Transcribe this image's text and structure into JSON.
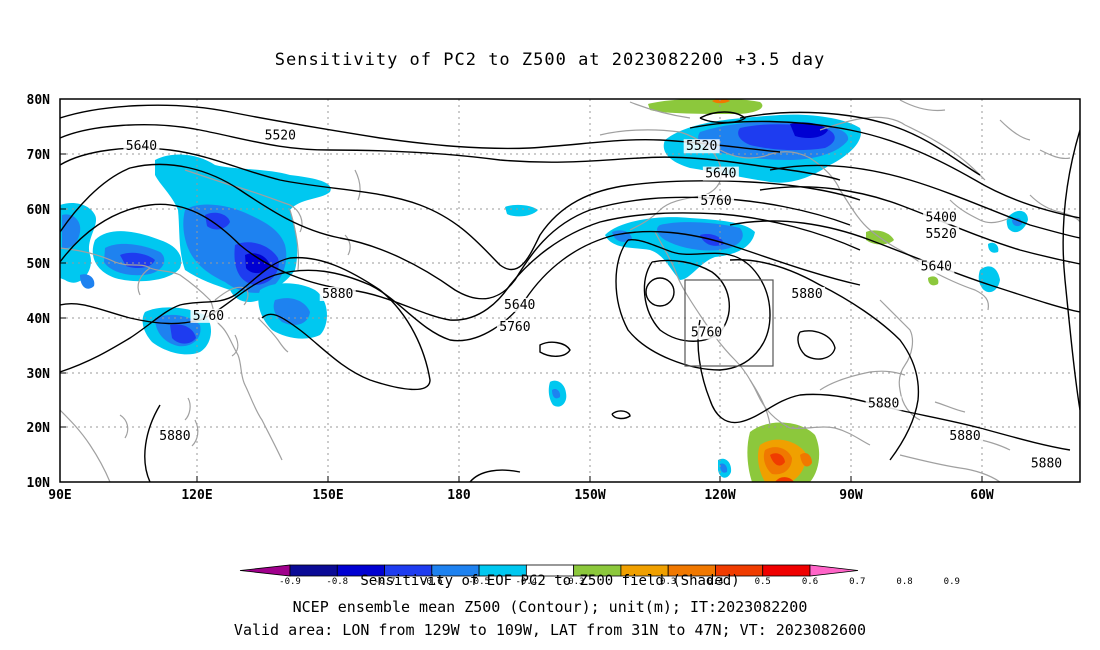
{
  "title": "Sensitivity of PC2 to Z500 at 2023082200 +3.5 day",
  "map": {
    "lat_labels": [
      "80N",
      "70N",
      "60N",
      "50N",
      "40N",
      "30N",
      "20N",
      "10N"
    ],
    "lon_labels": [
      "90E",
      "120E",
      "150E",
      "180",
      "150W",
      "120W",
      "90W",
      "60W"
    ],
    "contour_labels": [
      {
        "text": "5520",
        "lon": 136,
        "lat": 73
      },
      {
        "text": "5640",
        "lon": 107,
        "lat": 71
      },
      {
        "text": "5520",
        "lon": 224,
        "lat": 71
      },
      {
        "text": "5640",
        "lon": 228,
        "lat": 66
      },
      {
        "text": "5760",
        "lon": 227,
        "lat": 61
      },
      {
        "text": "5400",
        "lon": 274,
        "lat": 58
      },
      {
        "text": "5520",
        "lon": 274,
        "lat": 55
      },
      {
        "text": "5640",
        "lon": 273,
        "lat": 49
      },
      {
        "text": "5880",
        "lon": 246,
        "lat": 44
      },
      {
        "text": "5880",
        "lon": 148,
        "lat": 44
      },
      {
        "text": "5760",
        "lon": 121,
        "lat": 40
      },
      {
        "text": "5640",
        "lon": 186,
        "lat": 42
      },
      {
        "text": "5760",
        "lon": 185,
        "lat": 38
      },
      {
        "text": "5760",
        "lon": 225,
        "lat": 37
      },
      {
        "text": "5880",
        "lon": 262,
        "lat": 24
      },
      {
        "text": "5880",
        "lon": 279,
        "lat": 18
      },
      {
        "text": "5880",
        "lon": 296,
        "lat": 13
      },
      {
        "text": "5880",
        "lon": 114,
        "lat": 18
      }
    ],
    "valid_area_box": {
      "lon_min": 231,
      "lon_max": 251,
      "lat_min": 31,
      "lat_max": 47
    }
  },
  "colorbar": {
    "ticks": [
      "-0.9",
      "-0.8",
      "-0.7",
      "-0.6",
      "-0.5",
      "-0.4",
      "-0.3",
      "0.3",
      "0.4",
      "0.5",
      "0.6",
      "0.7",
      "0.8",
      "0.9"
    ],
    "colors": [
      "#a0008c",
      "#0a0a96",
      "#0000d2",
      "#1e3cf0",
      "#1e82f0",
      "#00c8f0",
      "#ffffff",
      "#8cc83c",
      "#f0a000",
      "#f07800",
      "#f03c00",
      "#f00000",
      "#ff64c8"
    ]
  },
  "captions": {
    "line1": "Sensitivity of EOF PC2 to Z500 field (Shaded)",
    "line2": "NCEP ensemble mean Z500 (Contour); unit(m); IT:2023082200",
    "line3": "Valid area: LON from 129W to 109W, LAT from 31N to 47N; VT: 2023082600"
  }
}
